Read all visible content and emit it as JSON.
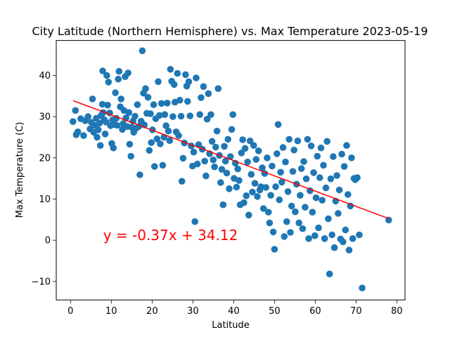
{
  "chart_data": {
    "type": "scatter",
    "title": "City Latitude (Northern Hemisphere) vs. Max Temperature 2023-05-19",
    "xlabel": "Latitude",
    "ylabel": "Max Temperature (C)",
    "xlim": [
      -3.5,
      82
    ],
    "ylim": [
      -14.5,
      48.5
    ],
    "xticks": [
      0,
      10,
      20,
      30,
      40,
      50,
      60,
      70,
      80
    ],
    "yticks": [
      -10,
      0,
      10,
      20,
      30,
      40
    ],
    "grid": false,
    "colors": {
      "points": "#1f77b4",
      "regression": "#ff0000",
      "equation": "#ff0000"
    },
    "regression": {
      "slope": -0.37,
      "intercept": 34.12,
      "x_range": [
        0.6,
        78
      ],
      "equation_text": "y = -0.37x + 34.12",
      "equation_anchor": [
        8,
        0
      ]
    },
    "series": [
      {
        "points": [
          [
            0.6,
            28.8
          ],
          [
            1.2,
            31.5
          ],
          [
            1.4,
            25.6
          ],
          [
            1.8,
            26.3
          ],
          [
            2.5,
            29.5
          ],
          [
            3.2,
            25.4
          ],
          [
            3.6,
            29.0
          ],
          [
            4.3,
            30.0
          ],
          [
            4.8,
            27.0
          ],
          [
            5.1,
            28.6
          ],
          [
            5.4,
            34.3
          ],
          [
            5.7,
            26.2
          ],
          [
            6.0,
            27.9
          ],
          [
            6.3,
            29.6
          ],
          [
            6.5,
            25.0
          ],
          [
            6.8,
            26.8
          ],
          [
            7.1,
            28.4
          ],
          [
            7.3,
            23.0
          ],
          [
            7.5,
            30.3
          ],
          [
            7.8,
            33.0
          ],
          [
            7.9,
            41.1
          ],
          [
            8.0,
            31.0
          ],
          [
            8.2,
            29.3
          ],
          [
            8.5,
            25.8
          ],
          [
            8.7,
            28.7
          ],
          [
            8.9,
            40.0
          ],
          [
            9.1,
            32.8
          ],
          [
            9.3,
            38.4
          ],
          [
            9.6,
            30.9
          ],
          [
            9.8,
            27.8
          ],
          [
            10.1,
            23.5
          ],
          [
            10.3,
            29.2
          ],
          [
            10.5,
            22.4
          ],
          [
            10.8,
            28.1
          ],
          [
            11.0,
            35.8
          ],
          [
            11.2,
            29.6
          ],
          [
            11.4,
            27.9
          ],
          [
            11.7,
            39.1
          ],
          [
            11.9,
            41.0
          ],
          [
            12.2,
            32.4
          ],
          [
            12.4,
            34.3
          ],
          [
            12.7,
            26.9
          ],
          [
            12.9,
            28.3
          ],
          [
            13.1,
            31.5
          ],
          [
            13.4,
            39.7
          ],
          [
            13.6,
            29.7
          ],
          [
            13.9,
            27.6
          ],
          [
            14.1,
            40.6
          ],
          [
            14.3,
            31.0
          ],
          [
            14.5,
            23.3
          ],
          [
            14.8,
            20.4
          ],
          [
            15.0,
            27.4
          ],
          [
            15.3,
            28.9
          ],
          [
            15.5,
            26.2
          ],
          [
            15.8,
            30.1
          ],
          [
            16.1,
            27.2
          ],
          [
            16.4,
            32.9
          ],
          [
            16.7,
            27.6
          ],
          [
            17.0,
            15.9
          ],
          [
            17.3,
            28.9
          ],
          [
            17.6,
            46.0
          ],
          [
            17.9,
            35.7
          ],
          [
            18.1,
            28.0
          ],
          [
            18.4,
            36.8
          ],
          [
            18.7,
            30.8
          ],
          [
            19.0,
            34.7
          ],
          [
            19.3,
            21.8
          ],
          [
            19.6,
            30.7
          ],
          [
            19.8,
            23.7
          ],
          [
            20.1,
            26.8
          ],
          [
            20.4,
            32.9
          ],
          [
            20.6,
            17.9
          ],
          [
            20.9,
            29.5
          ],
          [
            21.2,
            24.6
          ],
          [
            21.5,
            38.5
          ],
          [
            21.8,
            30.3
          ],
          [
            22.0,
            23.4
          ],
          [
            22.3,
            33.2
          ],
          [
            22.6,
            18.2
          ],
          [
            22.9,
            25.0
          ],
          [
            23.1,
            30.5
          ],
          [
            23.4,
            27.8
          ],
          [
            23.7,
            33.3
          ],
          [
            24.0,
            26.5
          ],
          [
            24.3,
            24.2
          ],
          [
            24.5,
            41.5
          ],
          [
            24.8,
            38.6
          ],
          [
            25.1,
            30.0
          ],
          [
            25.4,
            37.8
          ],
          [
            25.6,
            33.5
          ],
          [
            25.9,
            26.3
          ],
          [
            26.2,
            40.5
          ],
          [
            26.5,
            25.4
          ],
          [
            26.8,
            34.0
          ],
          [
            27.1,
            30.1
          ],
          [
            27.3,
            14.3
          ],
          [
            27.6,
            19.9
          ],
          [
            27.9,
            23.6
          ],
          [
            28.2,
            40.2
          ],
          [
            28.5,
            37.4
          ],
          [
            28.7,
            33.7
          ],
          [
            29.0,
            38.5
          ],
          [
            29.3,
            30.2
          ],
          [
            29.6,
            22.9
          ],
          [
            29.9,
            18.0
          ],
          [
            30.2,
            21.4
          ],
          [
            30.5,
            4.5
          ],
          [
            30.8,
            39.4
          ],
          [
            31.1,
            18.5
          ],
          [
            31.4,
            23.2
          ],
          [
            31.7,
            30.5
          ],
          [
            32.0,
            34.6
          ],
          [
            32.3,
            22.1
          ],
          [
            32.6,
            37.3
          ],
          [
            32.9,
            19.2
          ],
          [
            33.2,
            15.6
          ],
          [
            33.5,
            29.4
          ],
          [
            33.8,
            35.6
          ],
          [
            34.1,
            21.0
          ],
          [
            34.4,
            30.5
          ],
          [
            34.7,
            24.0
          ],
          [
            35.0,
            19.5
          ],
          [
            35.3,
            17.8
          ],
          [
            35.6,
            22.6
          ],
          [
            35.9,
            26.5
          ],
          [
            36.2,
            36.8
          ],
          [
            36.5,
            20.6
          ],
          [
            36.8,
            14.0
          ],
          [
            37.1,
            17.2
          ],
          [
            37.4,
            8.6
          ],
          [
            37.7,
            22.8
          ],
          [
            38.0,
            19.2
          ],
          [
            38.3,
            16.3
          ],
          [
            38.6,
            24.5
          ],
          [
            38.9,
            12.5
          ],
          [
            39.2,
            20.3
          ],
          [
            39.5,
            26.9
          ],
          [
            39.8,
            30.5
          ],
          [
            40.1,
            15.0
          ],
          [
            40.4,
            18.7
          ],
          [
            40.7,
            12.9
          ],
          [
            41.0,
            17.3
          ],
          [
            41.3,
            14.5
          ],
          [
            41.6,
            8.6
          ],
          [
            41.9,
            21.2
          ],
          [
            42.2,
            24.4
          ],
          [
            42.5,
            9.1
          ],
          [
            42.8,
            22.3
          ],
          [
            43.1,
            10.8
          ],
          [
            43.4,
            19.0
          ],
          [
            43.7,
            6.1
          ],
          [
            44.0,
            24.1
          ],
          [
            44.3,
            16.0
          ],
          [
            44.6,
            11.7
          ],
          [
            44.9,
            23.0
          ],
          [
            45.2,
            13.8
          ],
          [
            45.5,
            19.6
          ],
          [
            45.8,
            10.6
          ],
          [
            46.1,
            21.7
          ],
          [
            46.4,
            12.2
          ],
          [
            46.7,
            13.0
          ],
          [
            47.0,
            17.6
          ],
          [
            47.3,
            7.7
          ],
          [
            47.6,
            16.2
          ],
          [
            47.9,
            12.8
          ],
          [
            48.2,
            20.0
          ],
          [
            48.5,
            6.8
          ],
          [
            48.8,
            4.2
          ],
          [
            49.1,
            10.9
          ],
          [
            49.4,
            18.0
          ],
          [
            49.7,
            2.0
          ],
          [
            50.0,
            -2.2
          ],
          [
            50.3,
            13.0
          ],
          [
            50.6,
            21.0
          ],
          [
            50.9,
            28.1
          ],
          [
            51.2,
            9.8
          ],
          [
            51.5,
            16.5
          ],
          [
            51.8,
            14.1
          ],
          [
            52.1,
            22.5
          ],
          [
            52.4,
            0.9
          ],
          [
            52.7,
            19.0
          ],
          [
            53.0,
            4.5
          ],
          [
            53.3,
            11.8
          ],
          [
            53.6,
            24.5
          ],
          [
            53.9,
            1.9
          ],
          [
            54.2,
            8.3
          ],
          [
            54.5,
            16.7
          ],
          [
            54.8,
            21.9
          ],
          [
            55.1,
            6.9
          ],
          [
            55.4,
            13.6
          ],
          [
            55.7,
            24.1
          ],
          [
            56.0,
            4.2
          ],
          [
            56.3,
            10.9
          ],
          [
            56.6,
            17.4
          ],
          [
            56.9,
            2.8
          ],
          [
            57.2,
            19.1
          ],
          [
            57.5,
            8.0
          ],
          [
            57.8,
            14.9
          ],
          [
            58.1,
            24.5
          ],
          [
            58.4,
            0.4
          ],
          [
            58.7,
            12.0
          ],
          [
            59.0,
            22.9
          ],
          [
            59.3,
            6.8
          ],
          [
            59.6,
            16.4
          ],
          [
            59.9,
            1.1
          ],
          [
            60.2,
            10.3
          ],
          [
            60.5,
            20.4
          ],
          [
            60.8,
            3.0
          ],
          [
            61.1,
            15.2
          ],
          [
            61.4,
            22.4
          ],
          [
            61.7,
            9.7
          ],
          [
            62.0,
            18.2
          ],
          [
            62.3,
            0.4
          ],
          [
            62.6,
            12.7
          ],
          [
            62.9,
            24.0
          ],
          [
            63.2,
            5.2
          ],
          [
            63.5,
            -8.2
          ],
          [
            63.8,
            14.9
          ],
          [
            64.1,
            1.3
          ],
          [
            64.4,
            20.3
          ],
          [
            64.7,
            -1.8
          ],
          [
            65.0,
            9.5
          ],
          [
            65.3,
            15.7
          ],
          [
            65.6,
            6.5
          ],
          [
            65.9,
            12.2
          ],
          [
            66.2,
            0.3
          ],
          [
            66.5,
            20.9
          ],
          [
            66.8,
            -0.4
          ],
          [
            67.1,
            17.9
          ],
          [
            67.4,
            2.5
          ],
          [
            67.7,
            23.0
          ],
          [
            68.0,
            11.1
          ],
          [
            68.3,
            -2.4
          ],
          [
            68.6,
            8.3
          ],
          [
            68.9,
            20.0
          ],
          [
            69.2,
            0.4
          ],
          [
            69.5,
            15.0
          ],
          [
            69.8,
            14.7
          ],
          [
            70.3,
            15.2
          ],
          [
            70.8,
            1.3
          ],
          [
            71.5,
            -11.6
          ],
          [
            78.0,
            4.9
          ]
        ]
      }
    ]
  }
}
